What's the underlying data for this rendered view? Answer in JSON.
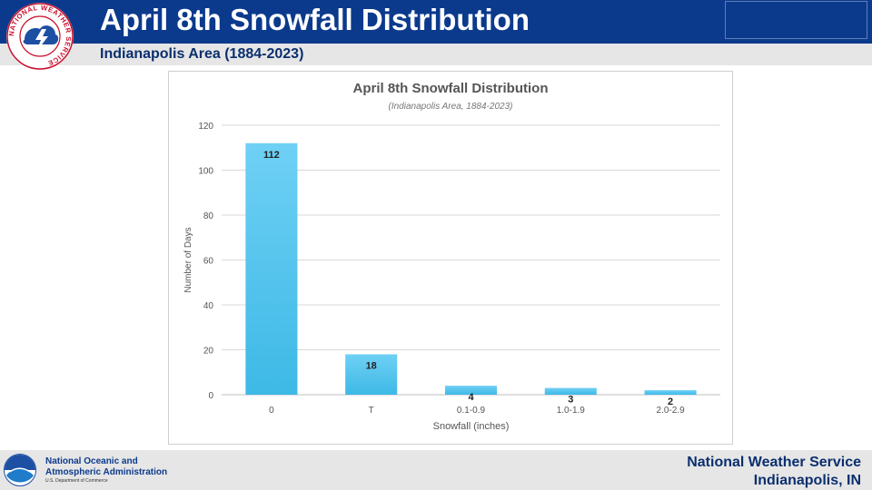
{
  "header": {
    "title": "April 8th Snowfall Distribution",
    "subtitle": "Indianapolis Area (1884-2023)",
    "logo_text": "NATIONAL WEATHER SERVICE"
  },
  "footer": {
    "agency_line1": "National Oceanic and",
    "agency_line2": "Atmospheric Administration",
    "department": "U.S. Department of Commerce",
    "office_line1": "National Weather Service",
    "office_line2": "Indianapolis, IN"
  },
  "colors": {
    "header_blue": "#0b3a8c",
    "bar_top": "#6fd0f5",
    "bar_bottom": "#3db9e6"
  },
  "chart_data": {
    "type": "bar",
    "title": "April 8th Snowfall Distribution",
    "subtitle": "(Indianapolis Area, 1884-2023)",
    "xlabel": "Snowfall (inches)",
    "ylabel": "Number of Days",
    "categories": [
      "0",
      "T",
      "0.1-0.9",
      "1.0-1.9",
      "2.0-2.9"
    ],
    "values": [
      112,
      18,
      4,
      3,
      2
    ],
    "ylim": [
      0,
      120
    ],
    "yticks": [
      0,
      20,
      40,
      60,
      80,
      100,
      120
    ],
    "grid": true,
    "legend": "none"
  }
}
